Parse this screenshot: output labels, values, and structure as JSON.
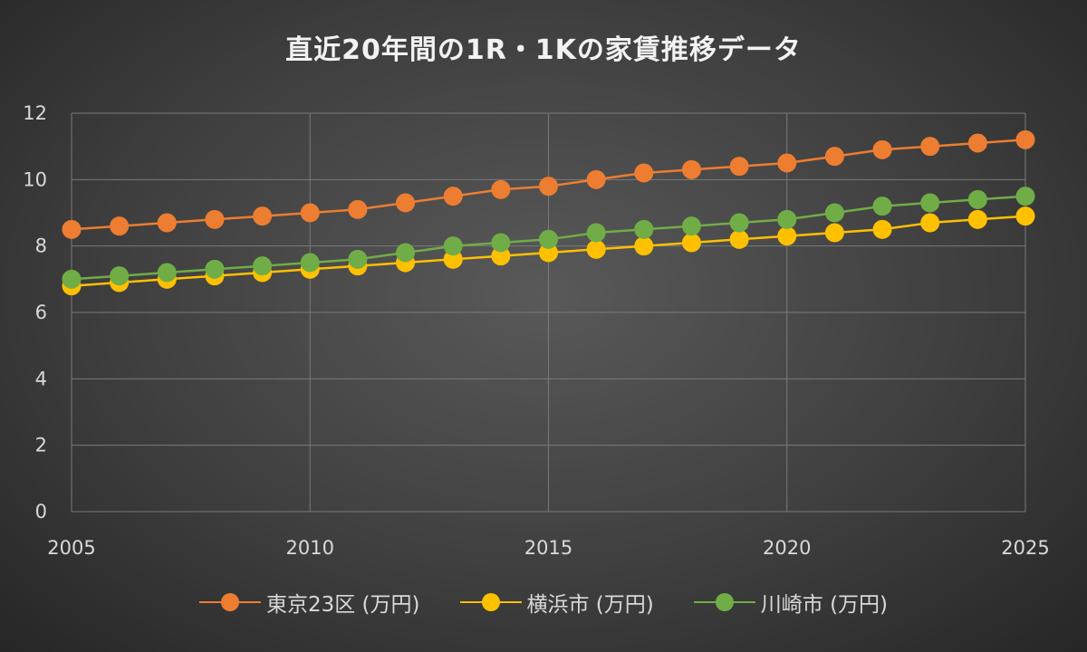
{
  "chart_data": {
    "type": "line",
    "title": "直近20年間の1R・1Kの家賃推移データ",
    "xlabel": "",
    "ylabel": "",
    "xlim": [
      2005,
      2025
    ],
    "ylim": [
      0,
      12
    ],
    "x_ticks": [
      2005,
      2010,
      2015,
      2020,
      2025
    ],
    "y_ticks": [
      0,
      2,
      4,
      6,
      8,
      10,
      12
    ],
    "grid": true,
    "legend_position": "bottom",
    "x": [
      2005,
      2006,
      2007,
      2008,
      2009,
      2010,
      2011,
      2012,
      2013,
      2014,
      2015,
      2016,
      2017,
      2018,
      2019,
      2020,
      2021,
      2022,
      2023,
      2024,
      2025
    ],
    "series": [
      {
        "name": "東京23区 (万円)",
        "color": "#ed7d31",
        "values": [
          8.5,
          8.6,
          8.7,
          8.8,
          8.9,
          9.0,
          9.1,
          9.3,
          9.5,
          9.7,
          9.8,
          10.0,
          10.2,
          10.3,
          10.4,
          10.5,
          10.7,
          10.9,
          11.0,
          11.1,
          11.2
        ]
      },
      {
        "name": "横浜市 (万円)",
        "color": "#ffc000",
        "values": [
          6.8,
          6.9,
          7.0,
          7.1,
          7.2,
          7.3,
          7.4,
          7.5,
          7.6,
          7.7,
          7.8,
          7.9,
          8.0,
          8.1,
          8.2,
          8.3,
          8.4,
          8.5,
          8.7,
          8.8,
          8.9
        ]
      },
      {
        "name": "川崎市 (万円)",
        "color": "#70ad47",
        "values": [
          7.0,
          7.1,
          7.2,
          7.3,
          7.4,
          7.5,
          7.6,
          7.8,
          8.0,
          8.1,
          8.2,
          8.4,
          8.5,
          8.6,
          8.7,
          8.8,
          9.0,
          9.2,
          9.3,
          9.4,
          9.5
        ]
      }
    ]
  }
}
